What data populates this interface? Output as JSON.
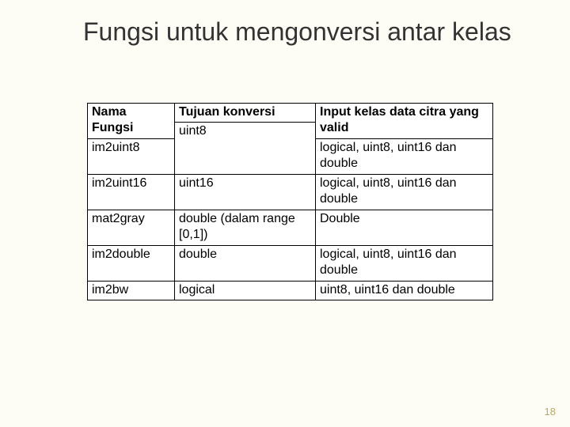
{
  "title": "Fungsi untuk mengonversi antar kelas",
  "page_number": "18",
  "table": {
    "headers": {
      "col1": "Nama Fungsi",
      "col2": "Tujuan konversi",
      "col3": "Input kelas data citra yang valid"
    },
    "rows": [
      {
        "name": "im2uint8",
        "target": "uint8",
        "input": "logical, uint8, uint16 dan double"
      },
      {
        "name": "im2uint16",
        "target": "uint16",
        "input": "logical, uint8, uint16 dan double"
      },
      {
        "name": "mat2gray",
        "target": "double (dalam range [0,1])",
        "input": "Double"
      },
      {
        "name": "im2double",
        "target": "double",
        "input": "logical, uint8, uint16 dan double"
      },
      {
        "name": "im2bw",
        "target": "logical",
        "input": "uint8, uint16 dan double"
      }
    ]
  }
}
